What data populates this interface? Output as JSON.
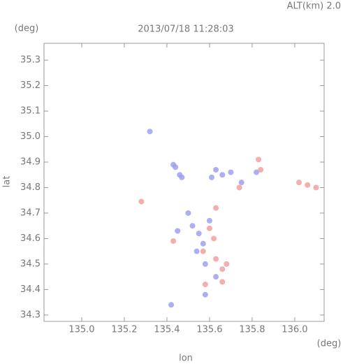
{
  "chart_data": {
    "type": "scatter",
    "title": "2013/07/18 11:28:03",
    "annotation": "ALT(km) 2.0",
    "x_label": "lon",
    "y_label": "lat",
    "x_unit": "(deg)",
    "y_unit": "(deg)",
    "xlim": [
      134.823,
      136.138
    ],
    "ylim": [
      34.275,
      35.366
    ],
    "xticks": [
      {
        "value": 135,
        "label": "135.0"
      },
      135.2,
      135.4,
      135.6,
      135.8,
      {
        "value": 136,
        "label": "136.0"
      }
    ],
    "yticks": [
      34.3,
      34.4,
      34.5,
      34.6,
      34.7,
      34.8,
      34.9,
      {
        "value": 35,
        "label": "35.0"
      },
      35.1,
      35.2,
      35.3
    ],
    "series": [
      {
        "color": "#9a9af0",
        "x": [
          135.32,
          135.43,
          135.44,
          135.46,
          135.47,
          135.61,
          135.63,
          135.66,
          135.7,
          135.5,
          135.52,
          135.55,
          135.57,
          135.54,
          135.45,
          135.6,
          135.58,
          135.63,
          135.58,
          135.42,
          135.75,
          135.82
        ],
        "y": [
          35.02,
          34.89,
          34.88,
          34.85,
          34.84,
          34.84,
          34.87,
          34.85,
          34.86,
          34.7,
          34.65,
          34.62,
          34.58,
          34.55,
          34.63,
          34.67,
          34.5,
          34.45,
          34.38,
          34.34,
          34.82,
          34.86
        ]
      },
      {
        "color": "#f09a9a",
        "x": [
          135.83,
          135.84,
          136.02,
          136.06,
          136.1,
          135.28,
          135.58,
          135.66,
          135.6,
          135.62,
          135.57,
          135.63,
          135.66,
          135.43,
          135.68,
          135.74,
          135.63
        ],
        "y": [
          34.91,
          34.87,
          34.82,
          34.81,
          34.8,
          34.745,
          34.42,
          34.43,
          34.64,
          34.6,
          34.55,
          34.52,
          34.48,
          34.59,
          34.5,
          34.8,
          34.72
        ]
      }
    ]
  }
}
